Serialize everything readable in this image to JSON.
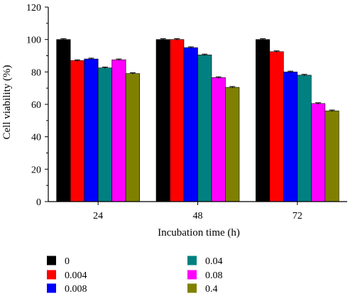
{
  "chart_data": {
    "type": "bar",
    "categories": [
      "24",
      "48",
      "72"
    ],
    "xlabel": "Incubation time (h)",
    "ylabel": "Cell viability (%)",
    "ylim": [
      0,
      120
    ],
    "yticks": [
      0,
      20,
      40,
      60,
      80,
      100,
      120
    ],
    "grid": false,
    "error_bars": true,
    "legend_position": "bottom",
    "series": [
      {
        "name": "0",
        "color": "#000000",
        "values": [
          100,
          100,
          100
        ],
        "errors": [
          0.5,
          0.5,
          0.5
        ]
      },
      {
        "name": "0.004",
        "color": "#ff0000",
        "values": [
          87,
          100,
          92.5
        ],
        "errors": [
          0.5,
          0.5,
          0.5
        ]
      },
      {
        "name": "0.008",
        "color": "#0000ff",
        "values": [
          88,
          95,
          80
        ],
        "errors": [
          0.5,
          0.5,
          0.5
        ]
      },
      {
        "name": "0.04",
        "color": "#008080",
        "values": [
          82.5,
          90.5,
          78
        ],
        "errors": [
          0.5,
          0.5,
          0.5
        ]
      },
      {
        "name": "0.08",
        "color": "#ff00ff",
        "values": [
          87.5,
          76.5,
          60.5
        ],
        "errors": [
          0.5,
          0.5,
          0.5
        ]
      },
      {
        "name": "0.4",
        "color": "#808000",
        "values": [
          79,
          70.5,
          56
        ],
        "errors": [
          0.5,
          0.5,
          0.5
        ]
      }
    ]
  }
}
